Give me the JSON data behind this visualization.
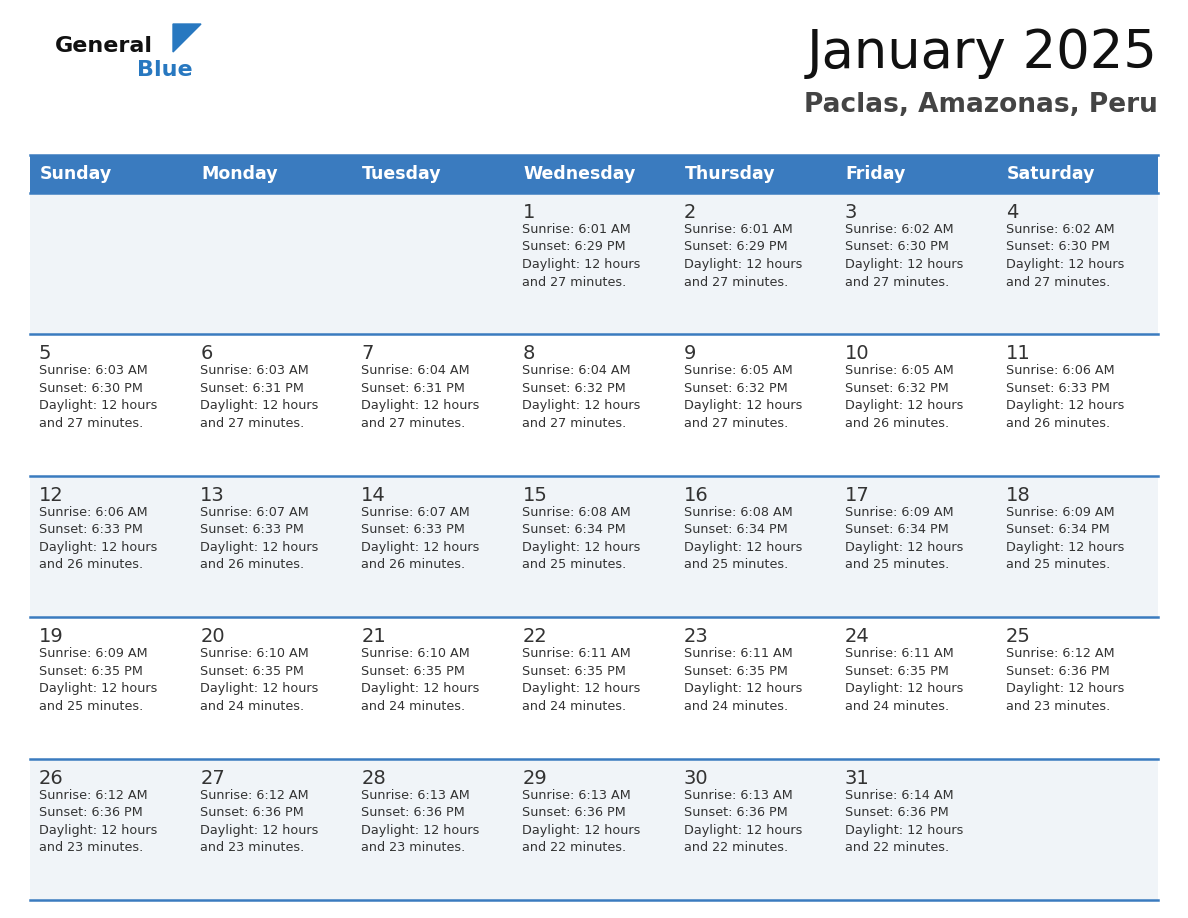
{
  "title": "January 2025",
  "subtitle": "Paclas, Amazonas, Peru",
  "header_bg": "#3a7bbf",
  "header_text_color": "#ffffff",
  "row_bg_odd": "#f0f4f8",
  "row_bg_even": "#ffffff",
  "separator_color": "#3a7bbf",
  "day_headers": [
    "Sunday",
    "Monday",
    "Tuesday",
    "Wednesday",
    "Thursday",
    "Friday",
    "Saturday"
  ],
  "calendar": [
    [
      {
        "day": null,
        "info": ""
      },
      {
        "day": null,
        "info": ""
      },
      {
        "day": null,
        "info": ""
      },
      {
        "day": 1,
        "info": "Sunrise: 6:01 AM\nSunset: 6:29 PM\nDaylight: 12 hours\nand 27 minutes."
      },
      {
        "day": 2,
        "info": "Sunrise: 6:01 AM\nSunset: 6:29 PM\nDaylight: 12 hours\nand 27 minutes."
      },
      {
        "day": 3,
        "info": "Sunrise: 6:02 AM\nSunset: 6:30 PM\nDaylight: 12 hours\nand 27 minutes."
      },
      {
        "day": 4,
        "info": "Sunrise: 6:02 AM\nSunset: 6:30 PM\nDaylight: 12 hours\nand 27 minutes."
      }
    ],
    [
      {
        "day": 5,
        "info": "Sunrise: 6:03 AM\nSunset: 6:30 PM\nDaylight: 12 hours\nand 27 minutes."
      },
      {
        "day": 6,
        "info": "Sunrise: 6:03 AM\nSunset: 6:31 PM\nDaylight: 12 hours\nand 27 minutes."
      },
      {
        "day": 7,
        "info": "Sunrise: 6:04 AM\nSunset: 6:31 PM\nDaylight: 12 hours\nand 27 minutes."
      },
      {
        "day": 8,
        "info": "Sunrise: 6:04 AM\nSunset: 6:32 PM\nDaylight: 12 hours\nand 27 minutes."
      },
      {
        "day": 9,
        "info": "Sunrise: 6:05 AM\nSunset: 6:32 PM\nDaylight: 12 hours\nand 27 minutes."
      },
      {
        "day": 10,
        "info": "Sunrise: 6:05 AM\nSunset: 6:32 PM\nDaylight: 12 hours\nand 26 minutes."
      },
      {
        "day": 11,
        "info": "Sunrise: 6:06 AM\nSunset: 6:33 PM\nDaylight: 12 hours\nand 26 minutes."
      }
    ],
    [
      {
        "day": 12,
        "info": "Sunrise: 6:06 AM\nSunset: 6:33 PM\nDaylight: 12 hours\nand 26 minutes."
      },
      {
        "day": 13,
        "info": "Sunrise: 6:07 AM\nSunset: 6:33 PM\nDaylight: 12 hours\nand 26 minutes."
      },
      {
        "day": 14,
        "info": "Sunrise: 6:07 AM\nSunset: 6:33 PM\nDaylight: 12 hours\nand 26 minutes."
      },
      {
        "day": 15,
        "info": "Sunrise: 6:08 AM\nSunset: 6:34 PM\nDaylight: 12 hours\nand 25 minutes."
      },
      {
        "day": 16,
        "info": "Sunrise: 6:08 AM\nSunset: 6:34 PM\nDaylight: 12 hours\nand 25 minutes."
      },
      {
        "day": 17,
        "info": "Sunrise: 6:09 AM\nSunset: 6:34 PM\nDaylight: 12 hours\nand 25 minutes."
      },
      {
        "day": 18,
        "info": "Sunrise: 6:09 AM\nSunset: 6:34 PM\nDaylight: 12 hours\nand 25 minutes."
      }
    ],
    [
      {
        "day": 19,
        "info": "Sunrise: 6:09 AM\nSunset: 6:35 PM\nDaylight: 12 hours\nand 25 minutes."
      },
      {
        "day": 20,
        "info": "Sunrise: 6:10 AM\nSunset: 6:35 PM\nDaylight: 12 hours\nand 24 minutes."
      },
      {
        "day": 21,
        "info": "Sunrise: 6:10 AM\nSunset: 6:35 PM\nDaylight: 12 hours\nand 24 minutes."
      },
      {
        "day": 22,
        "info": "Sunrise: 6:11 AM\nSunset: 6:35 PM\nDaylight: 12 hours\nand 24 minutes."
      },
      {
        "day": 23,
        "info": "Sunrise: 6:11 AM\nSunset: 6:35 PM\nDaylight: 12 hours\nand 24 minutes."
      },
      {
        "day": 24,
        "info": "Sunrise: 6:11 AM\nSunset: 6:35 PM\nDaylight: 12 hours\nand 24 minutes."
      },
      {
        "day": 25,
        "info": "Sunrise: 6:12 AM\nSunset: 6:36 PM\nDaylight: 12 hours\nand 23 minutes."
      }
    ],
    [
      {
        "day": 26,
        "info": "Sunrise: 6:12 AM\nSunset: 6:36 PM\nDaylight: 12 hours\nand 23 minutes."
      },
      {
        "day": 27,
        "info": "Sunrise: 6:12 AM\nSunset: 6:36 PM\nDaylight: 12 hours\nand 23 minutes."
      },
      {
        "day": 28,
        "info": "Sunrise: 6:13 AM\nSunset: 6:36 PM\nDaylight: 12 hours\nand 23 minutes."
      },
      {
        "day": 29,
        "info": "Sunrise: 6:13 AM\nSunset: 6:36 PM\nDaylight: 12 hours\nand 22 minutes."
      },
      {
        "day": 30,
        "info": "Sunrise: 6:13 AM\nSunset: 6:36 PM\nDaylight: 12 hours\nand 22 minutes."
      },
      {
        "day": 31,
        "info": "Sunrise: 6:14 AM\nSunset: 6:36 PM\nDaylight: 12 hours\nand 22 minutes."
      },
      {
        "day": null,
        "info": ""
      }
    ]
  ],
  "logo_text1": "General",
  "logo_text2": "Blue",
  "logo_color1": "#111111",
  "logo_color2": "#2878c0",
  "title_color": "#111111",
  "subtitle_color": "#444444",
  "title_fontsize": 38,
  "subtitle_fontsize": 19,
  "header_fontsize": 12.5,
  "day_num_fontsize": 13,
  "info_fontsize": 9.2,
  "logo_fontsize": 16
}
